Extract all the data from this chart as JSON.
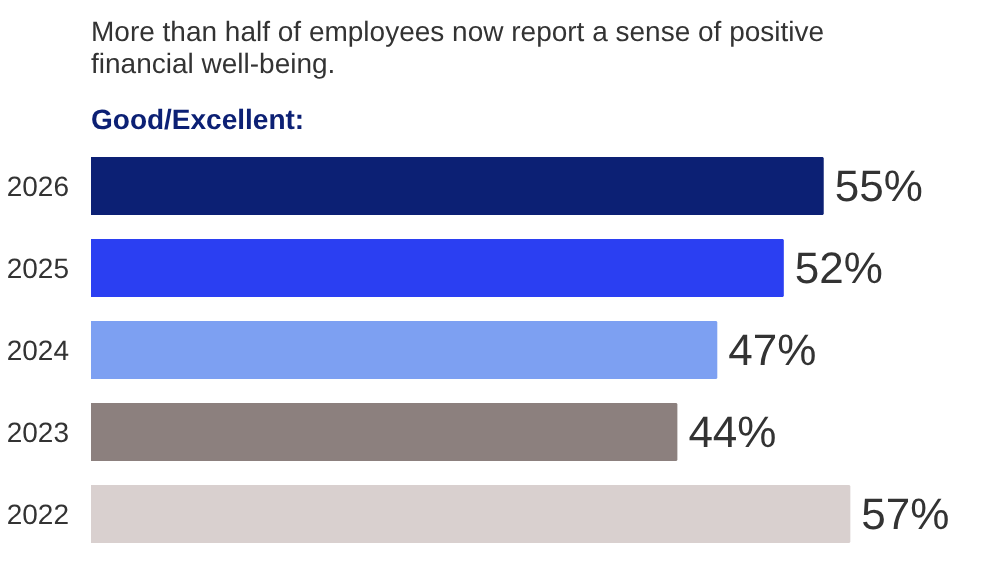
{
  "chart_data": {
    "type": "bar",
    "orientation": "horizontal",
    "title": "More than half of employees now report a sense of positive\nfinancial well-being.",
    "subtitle": "Good/Excellent:",
    "categories": [
      "2026",
      "2025",
      "2024",
      "2023",
      "2022"
    ],
    "values": [
      55,
      52,
      47,
      44,
      57
    ],
    "colors": [
      "#0c2074",
      "#2b3ff2",
      "#7da0f2",
      "#8c807e",
      "#d9d0cf"
    ],
    "value_labels": [
      "55%",
      "52%",
      "47%",
      "44%",
      "57%"
    ],
    "grid": false
  }
}
